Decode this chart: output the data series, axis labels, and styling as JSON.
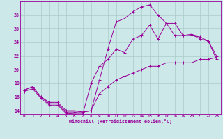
{
  "xlabel": "Windchill (Refroidissement éolien,°C)",
  "bg_color": "#cce8e8",
  "line_color": "#990099",
  "grid_color": "#aacccc",
  "hours": [
    0,
    1,
    2,
    3,
    4,
    5,
    6,
    7,
    8,
    9,
    10,
    11,
    12,
    13,
    14,
    15,
    16,
    17,
    18,
    19,
    20,
    21,
    22,
    23
  ],
  "line_bottom": [
    17.0,
    17.5,
    16.0,
    15.0,
    15.0,
    13.8,
    13.8,
    13.8,
    14.0,
    16.5,
    17.5,
    18.5,
    19.0,
    19.5,
    20.0,
    20.5,
    20.5,
    21.0,
    21.0,
    21.0,
    21.0,
    21.5,
    21.5,
    21.8
  ],
  "line_top": [
    17.0,
    17.5,
    16.0,
    15.2,
    15.2,
    14.0,
    14.0,
    13.8,
    14.0,
    18.5,
    23.0,
    27.0,
    27.5,
    28.5,
    29.2,
    29.5,
    28.0,
    26.8,
    26.8,
    25.0,
    25.0,
    24.8,
    24.2,
    21.5
  ],
  "line_mid": [
    16.8,
    17.2,
    15.8,
    14.8,
    14.8,
    13.6,
    13.5,
    13.5,
    18.0,
    20.5,
    21.5,
    23.0,
    22.5,
    24.5,
    25.0,
    26.5,
    24.5,
    26.8,
    25.0,
    25.0,
    25.2,
    24.5,
    24.2,
    22.0
  ],
  "xlim": [
    0,
    23
  ],
  "ylim": [
    13.5,
    30
  ],
  "yticks": [
    14,
    16,
    18,
    20,
    22,
    24,
    26,
    28
  ],
  "xticks": [
    0,
    1,
    2,
    3,
    4,
    5,
    6,
    7,
    8,
    9,
    10,
    11,
    12,
    13,
    14,
    15,
    16,
    17,
    18,
    19,
    20,
    21,
    22,
    23
  ]
}
